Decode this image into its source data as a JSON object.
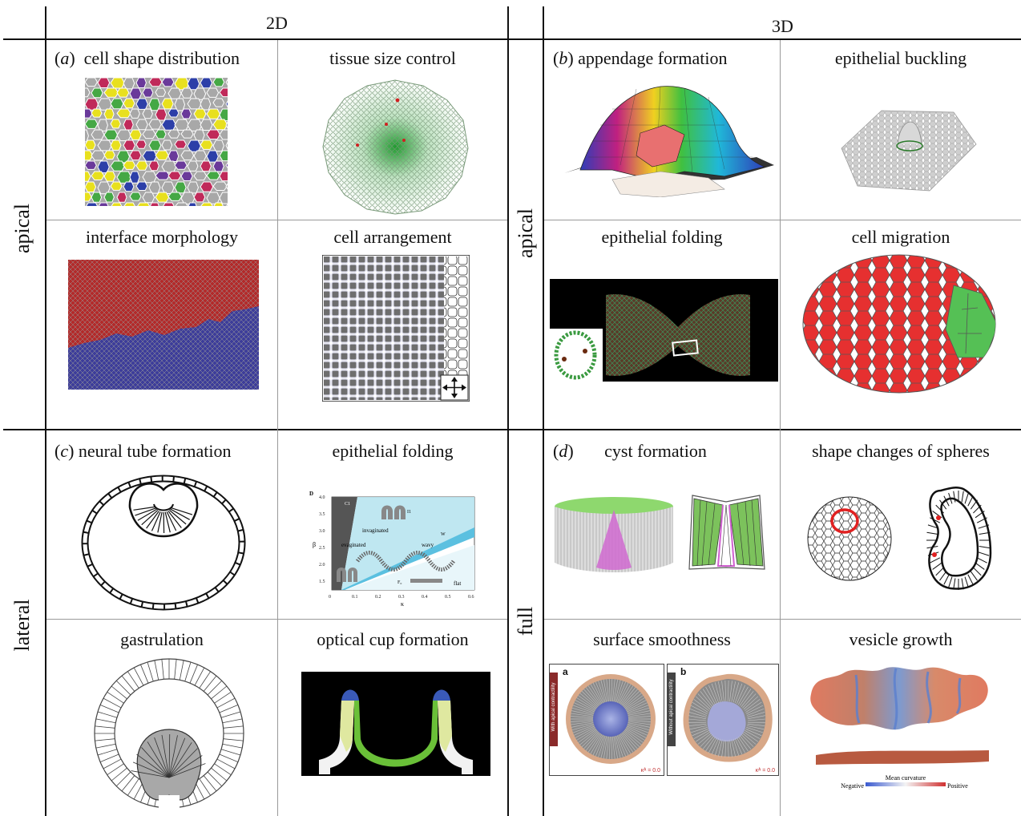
{
  "columns": {
    "left": "2D",
    "right": "3D"
  },
  "rows": {
    "top_left": "apical",
    "top_right": "apical",
    "bottom_left": "lateral",
    "bottom_right": "full"
  },
  "panels": {
    "a": {
      "tag": "a",
      "title": "cell shape distribution"
    },
    "tissue_size": {
      "title": "tissue size control"
    },
    "interface": {
      "title": "interface morphology"
    },
    "arrangement": {
      "title": "cell arrangement"
    },
    "b": {
      "tag": "b",
      "title": "appendage formation"
    },
    "buckling": {
      "title": "epithelial buckling"
    },
    "folding3d": {
      "title": "epithelial folding"
    },
    "migration": {
      "title": "cell migration"
    },
    "c": {
      "tag": "c",
      "title": "neural tube formation"
    },
    "folding2d": {
      "title": "epithelial folding"
    },
    "gastrulation": {
      "title": "gastrulation"
    },
    "optical": {
      "title": "optical cup formation"
    },
    "d": {
      "tag": "d",
      "title": "cyst formation"
    },
    "spheres": {
      "title": "shape changes of spheres"
    },
    "smoothness": {
      "title": "surface smoothness"
    },
    "vesicle": {
      "title": "vesicle growth"
    }
  },
  "phase_diagram": {
    "panel_letter": "D",
    "ylabel": "β",
    "xlabel": "κ",
    "y_ticks": [
      "4.0",
      "3.5",
      "3.0",
      "2.5",
      "2.0",
      "1.5"
    ],
    "x_ticks": [
      "0",
      "0.1",
      "0.2",
      "0.3",
      "0.4",
      "0.5",
      "0.6"
    ],
    "labels": [
      "invaginated",
      "evaginated",
      "wavy",
      "flat",
      "F₀",
      "W",
      "I1",
      "C1"
    ]
  },
  "smoothness_labels": {
    "a": "a",
    "b": "b",
    "side_a": "With apical contractility",
    "side_b": "Without apical contractility",
    "kappa": "κᴬ = 0.0"
  },
  "curvature_legend": {
    "title": "Mean curvature",
    "neg": "Negative",
    "pos": "Positive"
  }
}
